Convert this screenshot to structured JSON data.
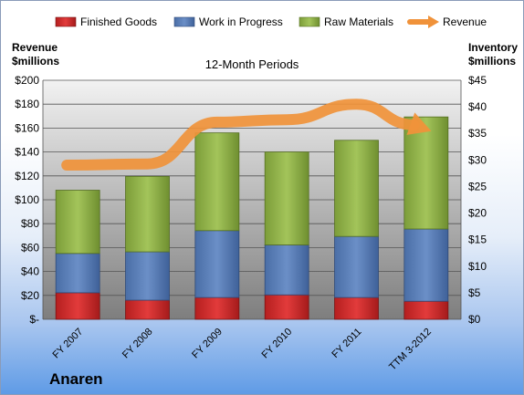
{
  "company": "Anaren",
  "chart_data": {
    "type": "bar",
    "stacked": true,
    "title": "12-Month Periods",
    "categories": [
      "FY 2007",
      "FY 2008",
      "FY 2009",
      "FY 2010",
      "FY 2011",
      "TTM 3-2012"
    ],
    "y_left_label": "Revenue $millions",
    "y_right_label": "Inventory $millions",
    "y_left_ticks": [
      "$-",
      "$20",
      "$40",
      "$60",
      "$80",
      "$100",
      "$120",
      "$140",
      "$160",
      "$180",
      "$200"
    ],
    "y_right_ticks": [
      "$0",
      "$5",
      "$10",
      "$15",
      "$20",
      "$25",
      "$30",
      "$35",
      "$40",
      "$45"
    ],
    "y_left_range": [
      0,
      200
    ],
    "y_right_range": [
      0,
      45
    ],
    "grid": true,
    "legend_position": "top",
    "series": [
      {
        "name": "Finished Goods",
        "axis": "right",
        "color": "#cc2a2a",
        "values": [
          5.0,
          3.6,
          4.1,
          4.6,
          4.1,
          3.4
        ]
      },
      {
        "name": "Work in Progress",
        "axis": "right",
        "color": "#5b7fb8",
        "values": [
          7.4,
          9.1,
          12.6,
          9.4,
          11.5,
          13.6
        ]
      },
      {
        "name": "Raw Materials",
        "axis": "right",
        "color": "#92b44a",
        "values": [
          11.9,
          14.2,
          18.4,
          17.5,
          18.1,
          21.1
        ]
      },
      {
        "name": "Revenue",
        "axis": "left",
        "type": "line",
        "color": "#f0923a",
        "values": [
          129,
          130,
          165,
          167,
          180,
          159
        ]
      }
    ]
  }
}
